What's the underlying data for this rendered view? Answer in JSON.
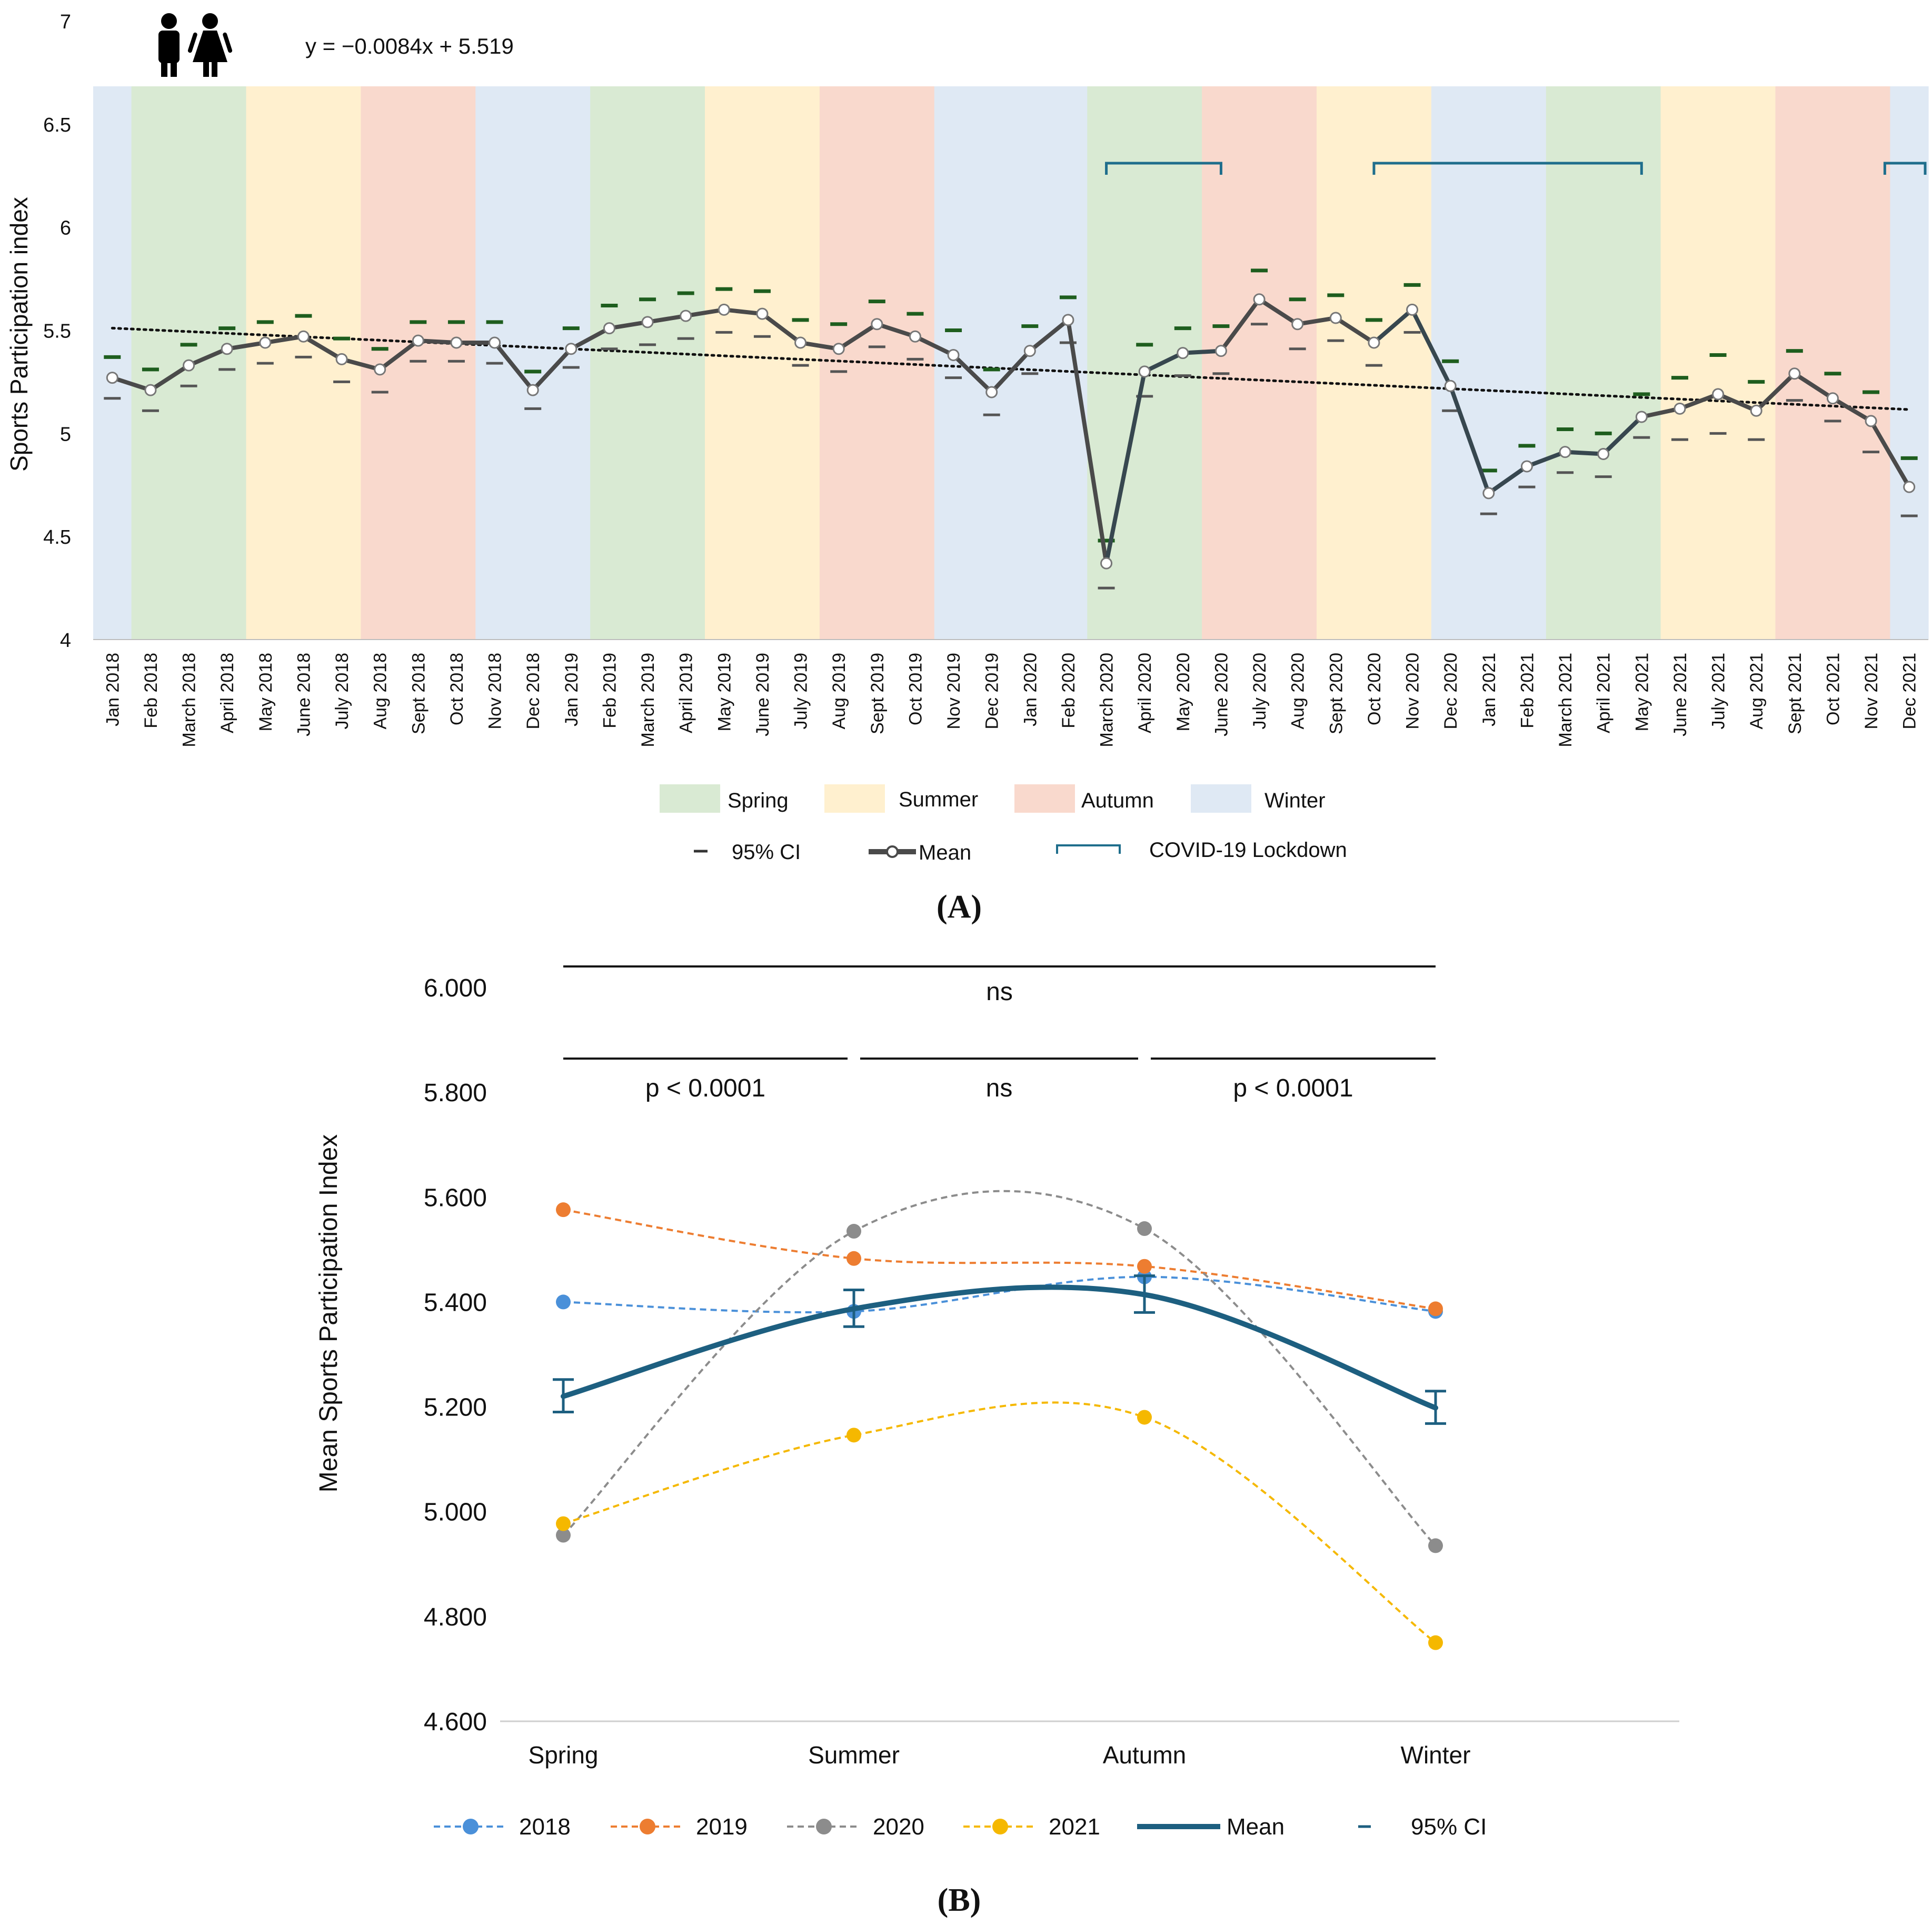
{
  "panel_a_label": "(A)",
  "panel_b_label": "(B)",
  "chart_data": [
    {
      "type": "line",
      "panel": "A",
      "title": "",
      "xlabel": "",
      "ylabel": "Sports Participation index",
      "ylim": [
        4,
        7
      ],
      "yticks": [
        "4",
        "4.5",
        "5",
        "5.5",
        "6",
        "6.5",
        "7"
      ],
      "equation": "y = −0.0084x + 5.519",
      "trend": {
        "slope": -0.0084,
        "intercept": 5.519
      },
      "categories": [
        "Jan 2018",
        "Feb 2018",
        "March 2018",
        "April 2018",
        "May 2018",
        "June 2018",
        "July 2018",
        "Aug 2018",
        "Sept 2018",
        "Oct 2018",
        "Nov 2018",
        "Dec 2018",
        "Jan 2019",
        "Feb 2019",
        "March 2019",
        "April 2019",
        "May 2019",
        "June 2019",
        "July 2019",
        "Aug 2019",
        "Sept 2019",
        "Oct 2019",
        "Nov 2019",
        "Dec 2019",
        "Jan 2020",
        "Feb 2020",
        "March 2020",
        "April 2020",
        "May 2020",
        "June 2020",
        "July 2020",
        "Aug 2020",
        "Sept 2020",
        "Oct 2020",
        "Nov 2020",
        "Dec 2020",
        "Jan 2021",
        "Feb 2021",
        "March 2021",
        "April 2021",
        "May 2021",
        "June 2021",
        "July 2021",
        "Aug 2021",
        "Sept 2021",
        "Oct 2021",
        "Nov 2021",
        "Dec 2021"
      ],
      "series": [
        {
          "name": "Mean",
          "values": [
            5.27,
            5.21,
            5.33,
            5.41,
            5.44,
            5.47,
            5.36,
            5.31,
            5.45,
            5.44,
            5.44,
            5.21,
            5.41,
            5.51,
            5.54,
            5.57,
            5.6,
            5.58,
            5.44,
            5.41,
            5.53,
            5.47,
            5.38,
            5.2,
            5.4,
            5.55,
            4.37,
            5.3,
            5.39,
            5.4,
            5.65,
            5.53,
            5.56,
            5.44,
            5.6,
            5.23,
            4.71,
            4.84,
            4.91,
            4.9,
            5.08,
            5.12,
            5.19,
            5.11,
            5.29,
            5.17,
            5.06,
            4.74
          ]
        },
        {
          "name": "95% CI upper",
          "values": [
            5.37,
            5.31,
            5.43,
            5.51,
            5.54,
            5.57,
            5.46,
            5.41,
            5.54,
            5.54,
            5.54,
            5.3,
            5.51,
            5.62,
            5.65,
            5.68,
            5.7,
            5.69,
            5.55,
            5.53,
            5.64,
            5.58,
            5.5,
            5.31,
            5.52,
            5.66,
            4.48,
            5.43,
            5.51,
            5.52,
            5.79,
            5.65,
            5.67,
            5.55,
            5.72,
            5.35,
            4.82,
            4.94,
            5.02,
            5.0,
            5.19,
            5.27,
            5.38,
            5.25,
            5.4,
            5.29,
            5.2,
            4.88
          ]
        },
        {
          "name": "95% CI lower",
          "values": [
            5.17,
            5.11,
            5.23,
            5.31,
            5.34,
            5.37,
            5.25,
            5.2,
            5.35,
            5.35,
            5.34,
            5.12,
            5.32,
            5.41,
            5.43,
            5.46,
            5.49,
            5.47,
            5.33,
            5.3,
            5.42,
            5.36,
            5.27,
            5.09,
            5.29,
            5.44,
            4.25,
            5.18,
            5.28,
            5.29,
            5.53,
            5.41,
            5.45,
            5.33,
            5.49,
            5.11,
            4.61,
            4.74,
            4.81,
            4.79,
            4.98,
            4.97,
            5.0,
            4.97,
            5.16,
            5.06,
            4.91,
            4.6
          ]
        }
      ],
      "season_bands": [
        "Winter",
        "Spring",
        "Spring",
        "Spring",
        "Summer",
        "Summer",
        "Summer",
        "Autumn",
        "Autumn",
        "Autumn",
        "Winter",
        "Winter",
        "Winter",
        "Spring",
        "Spring",
        "Spring",
        "Summer",
        "Summer",
        "Summer",
        "Autumn",
        "Autumn",
        "Autumn",
        "Winter",
        "Winter",
        "Winter",
        "Winter",
        "Spring",
        "Spring",
        "Spring",
        "Autumn",
        "Autumn",
        "Autumn",
        "Summer",
        "Summer",
        "Summer",
        "Winter",
        "Winter",
        "Winter",
        "Spring",
        "Spring",
        "Spring",
        "Summer",
        "Summer",
        "Summer",
        "Autumn",
        "Autumn",
        "Autumn",
        "Winter"
      ],
      "lockdowns": [
        {
          "from": "March 2020",
          "to": "June 2020"
        },
        {
          "from": "Oct 2020",
          "to": "May 2021"
        },
        {
          "from": "Dec 2021",
          "to": "Dec 2021"
        }
      ],
      "legend": {
        "seasons": [
          {
            "label": "Spring",
            "color": "#d9ead3"
          },
          {
            "label": "Summer",
            "color": "#fff0cf"
          },
          {
            "label": "Autumn",
            "color": "#f9d9cd"
          },
          {
            "label": "Winter",
            "color": "#dfe9f4"
          }
        ],
        "ci": "95% CI",
        "mean": "Mean",
        "lockdown": "COVID-19 Lockdown"
      },
      "colors": {
        "mean_line_default": "#4a4a4a",
        "mean_line_lockdown": "#37474f",
        "ci_upper": "#1e5e1e",
        "ci_lower": "#555555",
        "lockdown_bracket": "#1f6e8c",
        "trend": "#111111"
      }
    },
    {
      "type": "line",
      "panel": "B",
      "title": "",
      "xlabel": "",
      "ylabel": "Mean Sports Participation Index",
      "ylim": [
        4.6,
        6.0
      ],
      "yticks": [
        "4.600",
        "4.800",
        "5.000",
        "5.200",
        "5.400",
        "5.600",
        "5.800",
        "6.000"
      ],
      "categories": [
        "Spring",
        "Summer",
        "Autumn",
        "Winter"
      ],
      "series": [
        {
          "name": "2018",
          "color": "#4a90d9",
          "values": [
            5.4,
            5.382,
            5.448,
            5.382
          ]
        },
        {
          "name": "2019",
          "color": "#ed7d31",
          "values": [
            5.576,
            5.483,
            5.468,
            5.387
          ]
        },
        {
          "name": "2020",
          "color": "#8c8c8c",
          "values": [
            4.955,
            5.535,
            5.54,
            4.935
          ]
        },
        {
          "name": "2021",
          "color": "#f5b800",
          "values": [
            4.977,
            5.146,
            5.18,
            4.75
          ]
        },
        {
          "name": "Mean",
          "color": "#1d5f80",
          "values": [
            5.22,
            5.387,
            5.414,
            5.198
          ]
        }
      ],
      "ci": {
        "label": "95% CI",
        "upper": [
          5.252,
          5.423,
          5.45,
          5.23
        ],
        "lower": [
          5.19,
          5.353,
          5.38,
          5.168
        ]
      },
      "comparisons": [
        {
          "from": "Spring",
          "to": "Winter",
          "label": "ns"
        },
        {
          "from": "Spring",
          "to": "Summer",
          "label": "p < 0.0001"
        },
        {
          "from": "Summer",
          "to": "Autumn",
          "label": "ns"
        },
        {
          "from": "Autumn",
          "to": "Winter",
          "label": "p < 0.0001"
        }
      ]
    }
  ]
}
